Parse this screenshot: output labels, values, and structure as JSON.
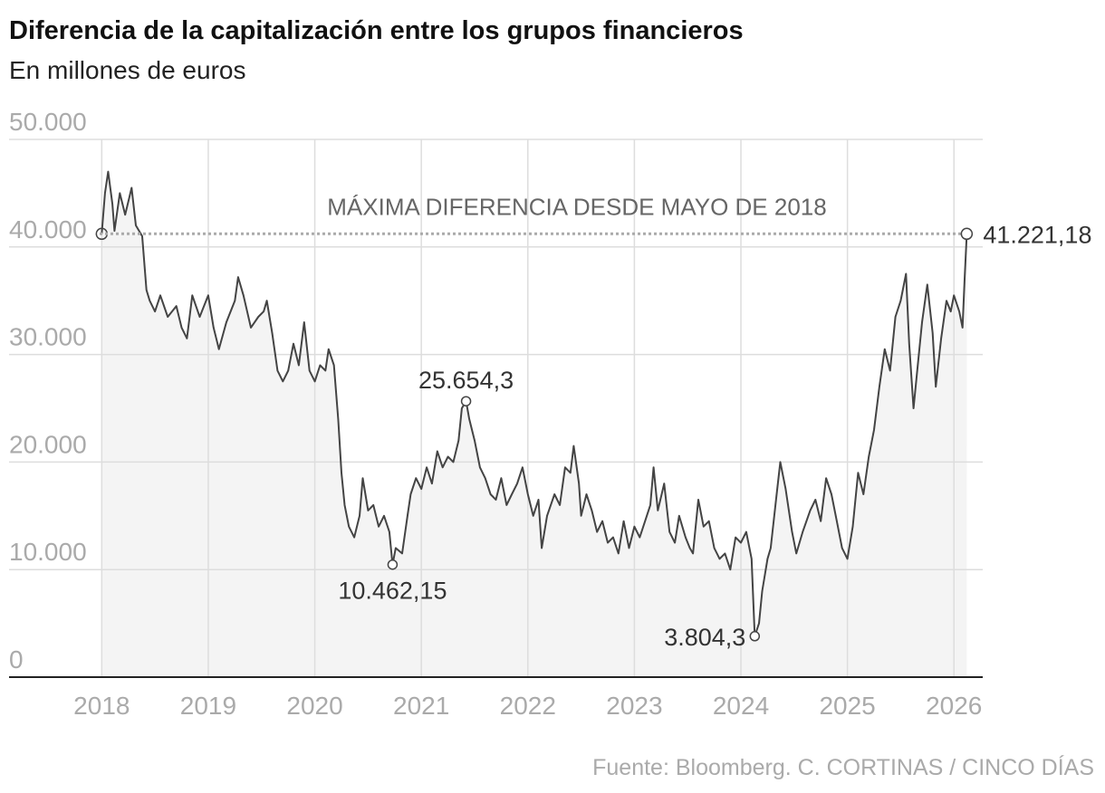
{
  "chart_data": {
    "type": "line",
    "title": "Diferencia de la capitalización entre los grupos financieros",
    "subtitle": "En millones de euros",
    "source": "Fuente: Bloomberg. C. CORTINAS / CINCO DÍAS",
    "reference_line": {
      "label": "MÁXIMA DIFERENCIA DESDE MAYO DE 2018",
      "value": 41221.18
    },
    "annotations": [
      {
        "x": 2026.12,
        "value": 41221.18,
        "label": "41.221,18"
      },
      {
        "x": 2021.42,
        "value": 25654.3,
        "label": "25.654,3"
      },
      {
        "x": 2020.73,
        "value": 10462.15,
        "label": "10.462,15"
      },
      {
        "x": 2024.13,
        "value": 3804.3,
        "label": "3.804,3"
      }
    ],
    "xlim": [
      2017.13,
      2026.27
    ],
    "ylim": [
      0,
      50000
    ],
    "xticks": [
      2018,
      2019,
      2020,
      2021,
      2022,
      2023,
      2024,
      2025,
      2026
    ],
    "yticks": [
      0,
      {
        "value": 10000,
        "label": "10.000"
      },
      {
        "value": 20000,
        "label": "20.000"
      },
      {
        "value": 30000,
        "label": "30.000"
      },
      {
        "value": 40000,
        "label": "40.000"
      },
      {
        "value": 50000,
        "label": "50.000"
      }
    ],
    "grid": true,
    "series": [
      {
        "color": "#444444",
        "x": [
          2018.0,
          2018.03,
          2018.06,
          2018.1,
          2018.12,
          2018.17,
          2018.22,
          2018.28,
          2018.32,
          2018.38,
          2018.42,
          2018.45,
          2018.5,
          2018.55,
          2018.62,
          2018.7,
          2018.75,
          2018.8,
          2018.85,
          2018.92,
          2019.0,
          2019.05,
          2019.1,
          2019.17,
          2019.25,
          2019.28,
          2019.33,
          2019.4,
          2019.47,
          2019.52,
          2019.55,
          2019.6,
          2019.65,
          2019.7,
          2019.75,
          2019.8,
          2019.85,
          2019.9,
          2019.95,
          2020.0,
          2020.05,
          2020.1,
          2020.13,
          2020.18,
          2020.22,
          2020.25,
          2020.28,
          2020.32,
          2020.37,
          2020.42,
          2020.45,
          2020.5,
          2020.55,
          2020.6,
          2020.65,
          2020.7,
          2020.73,
          2020.76,
          2020.82,
          2020.87,
          2020.9,
          2020.95,
          2021.0,
          2021.05,
          2021.1,
          2021.15,
          2021.2,
          2021.25,
          2021.3,
          2021.35,
          2021.38,
          2021.42,
          2021.45,
          2021.5,
          2021.55,
          2021.6,
          2021.65,
          2021.7,
          2021.75,
          2021.8,
          2021.85,
          2021.9,
          2021.95,
          2022.0,
          2022.05,
          2022.1,
          2022.13,
          2022.18,
          2022.25,
          2022.3,
          2022.35,
          2022.4,
          2022.43,
          2022.48,
          2022.5,
          2022.55,
          2022.6,
          2022.65,
          2022.7,
          2022.75,
          2022.8,
          2022.85,
          2022.9,
          2022.95,
          2023.0,
          2023.05,
          2023.1,
          2023.15,
          2023.18,
          2023.22,
          2023.28,
          2023.33,
          2023.38,
          2023.42,
          2023.48,
          2023.52,
          2023.55,
          2023.6,
          2023.65,
          2023.7,
          2023.75,
          2023.8,
          2023.85,
          2023.9,
          2023.95,
          2024.0,
          2024.05,
          2024.1,
          2024.13,
          2024.17,
          2024.2,
          2024.25,
          2024.28,
          2024.33,
          2024.37,
          2024.42,
          2024.48,
          2024.52,
          2024.58,
          2024.65,
          2024.7,
          2024.75,
          2024.8,
          2024.85,
          2024.9,
          2024.95,
          2025.0,
          2025.05,
          2025.1,
          2025.15,
          2025.2,
          2025.25,
          2025.3,
          2025.35,
          2025.4,
          2025.45,
          2025.5,
          2025.55,
          2025.58,
          2025.62,
          2025.65,
          2025.7,
          2025.75,
          2025.8,
          2025.83,
          2025.88,
          2025.93,
          2025.97,
          2026.0,
          2026.05,
          2026.08,
          2026.1,
          2026.12
        ],
        "values": [
          41221.18,
          45000,
          47000,
          44000,
          41500,
          45000,
          43000,
          45500,
          42000,
          41000,
          36000,
          35000,
          34000,
          35500,
          33500,
          34500,
          32500,
          31500,
          35500,
          33500,
          35500,
          32500,
          30500,
          33000,
          35000,
          37200,
          35500,
          32500,
          33500,
          34000,
          35000,
          32000,
          28500,
          27500,
          28500,
          31000,
          29000,
          33000,
          28500,
          27500,
          29000,
          28500,
          30500,
          29000,
          24000,
          19000,
          16000,
          14000,
          13000,
          15000,
          18500,
          15500,
          16000,
          14000,
          15000,
          13500,
          10462.15,
          12000,
          11500,
          15000,
          17000,
          18500,
          17500,
          19500,
          18000,
          21000,
          19500,
          20500,
          20000,
          22000,
          25000,
          25654.3,
          24000,
          22000,
          19500,
          18500,
          17000,
          16500,
          18500,
          16000,
          17000,
          18000,
          19500,
          17000,
          15000,
          16500,
          12000,
          15000,
          17000,
          16000,
          19500,
          19000,
          21500,
          18000,
          15000,
          17000,
          15500,
          13500,
          14500,
          12500,
          13000,
          11500,
          14500,
          12000,
          14000,
          13000,
          14500,
          16000,
          19500,
          15500,
          18000,
          13500,
          12500,
          15000,
          13000,
          12000,
          11500,
          16500,
          14000,
          14500,
          12000,
          11000,
          11500,
          10000,
          13000,
          12500,
          13500,
          11000,
          3804.3,
          5000,
          8000,
          11000,
          12000,
          16500,
          20000,
          17500,
          13500,
          11500,
          13500,
          15500,
          16500,
          14500,
          18500,
          17000,
          14500,
          12000,
          11000,
          14000,
          19000,
          17000,
          20500,
          23000,
          27000,
          30500,
          28500,
          33500,
          35000,
          37500,
          31000,
          25000,
          28000,
          33000,
          36500,
          32000,
          27000,
          31500,
          35000,
          34000,
          35500,
          34000,
          32500,
          37000,
          41221.18
        ]
      }
    ]
  }
}
